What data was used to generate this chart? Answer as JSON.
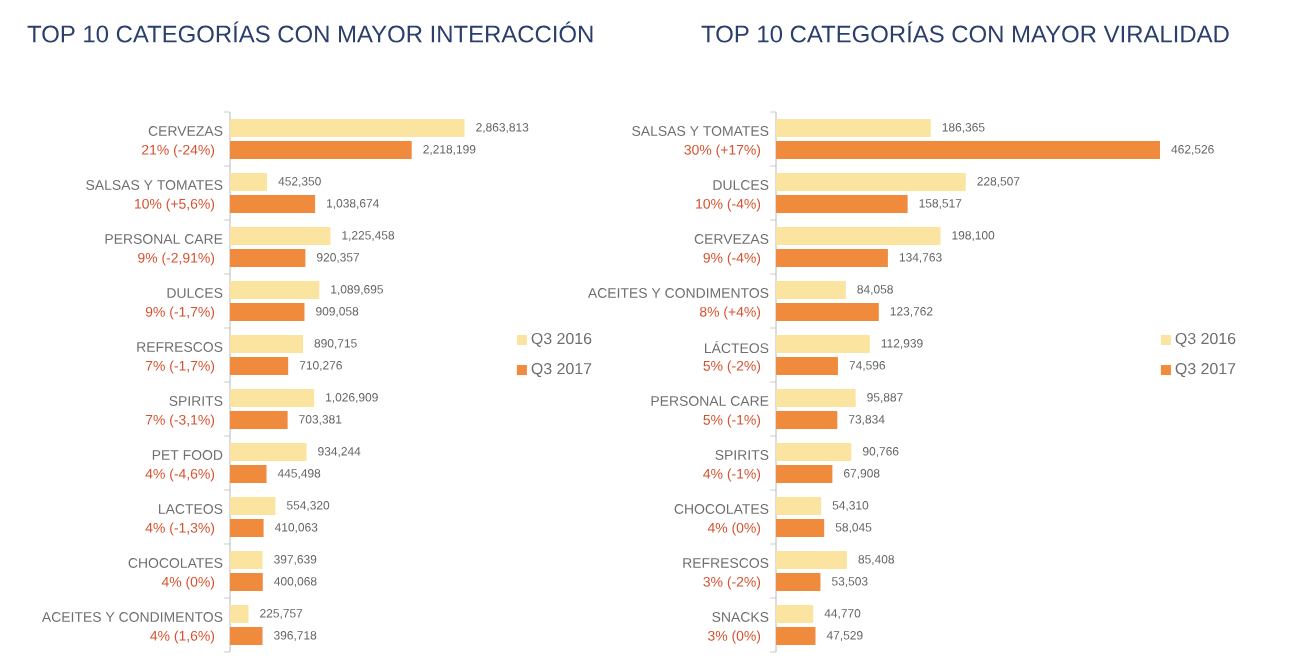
{
  "chart_data": [
    {
      "type": "bar",
      "orientation": "horizontal",
      "title": "TOP 10 CATEGORÍAS CON MAYOR INTERACCIÓN",
      "legend": "right",
      "categories": [
        "CERVEZAS",
        "SALSAS Y TOMATES",
        "PERSONAL CARE",
        "DULCES",
        "REFRESCOS",
        "SPIRITS",
        "PET FOOD",
        "LACTEOS",
        "CHOCOLATES",
        "ACEITES Y CONDIMENTOS"
      ],
      "series": [
        {
          "name": "Q3 2016",
          "color": "#fbe3a0",
          "values": [
            2863813,
            452350,
            1225458,
            1089695,
            890715,
            1026909,
            934244,
            554320,
            397639,
            225757
          ],
          "value_labels": [
            "2,863,813",
            "452,350",
            "1,225,458",
            "1,089,695",
            "890,715",
            "1,026,909",
            "934,244",
            "554,320",
            "397,639",
            "225,757"
          ]
        },
        {
          "name": "Q3 2017",
          "color": "#f08a3c",
          "values": [
            2218199,
            1038674,
            920357,
            909058,
            710276,
            703381,
            445498,
            410063,
            400068,
            396718
          ],
          "value_labels": [
            "2,218,199",
            "1,038,674",
            "920,357",
            "909,058",
            "710,276",
            "703,381",
            "445,498",
            "410,063",
            "400,068",
            "396,718"
          ]
        }
      ],
      "annotations": [
        "21% (-24%)",
        "10% (+5,6%)",
        "9% (-2,91%)",
        "9% (-1,7%)",
        "7% (-1,7%)",
        "7% (-3,1%)",
        "4% (-4,6%)",
        "4% (-1,3%)",
        "4% (0%)",
        "4% (1,6%)"
      ]
    },
    {
      "type": "bar",
      "orientation": "horizontal",
      "title": "TOP 10 CATEGORÍAS CON MAYOR VIRALIDAD",
      "legend": "right",
      "categories": [
        "SALSAS Y TOMATES",
        "DULCES",
        "CERVEZAS",
        "ACEITES Y CONDIMENTOS",
        "LÁCTEOS",
        "PERSONAL CARE",
        "SPIRITS",
        "CHOCOLATES",
        "REFRESCOS",
        "SNACKS"
      ],
      "series": [
        {
          "name": "Q3 2016",
          "color": "#fbe3a0",
          "values": [
            186365,
            228507,
            198100,
            84058,
            112939,
            95887,
            90766,
            54310,
            85408,
            44770
          ],
          "value_labels": [
            "186,365",
            "228,507",
            "198,100",
            "84,058",
            "112,939",
            "95,887",
            "90,766",
            "54,310",
            "85,408",
            "44,770"
          ]
        },
        {
          "name": "Q3 2017",
          "color": "#f08a3c",
          "values": [
            462526,
            158517,
            134763,
            123762,
            74596,
            73834,
            67908,
            58045,
            53503,
            47529
          ],
          "value_labels": [
            "462,526",
            "158,517",
            "134,763",
            "123,762",
            "74,596",
            "73,834",
            "67,908",
            "58,045",
            "53,503",
            "47,529"
          ]
        }
      ],
      "annotations": [
        "30% (+17%)",
        "10% (-4%)",
        "9% (-4%)",
        "8% (+4%)",
        "5% (-2%)",
        "5% (-1%)",
        "4% (-1%)",
        "4% (0%)",
        "3% (-2%)",
        "3% (0%)"
      ]
    }
  ]
}
